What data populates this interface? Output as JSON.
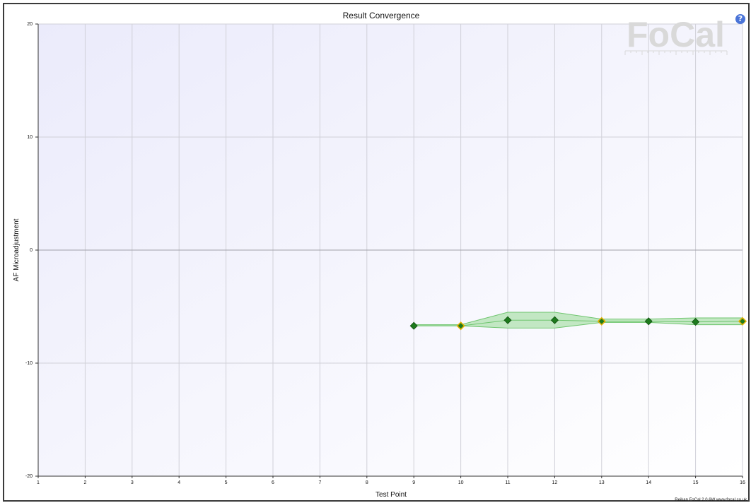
{
  "app": {
    "logo_text": "FoCal",
    "credit": "Reikan FoCal 2.0.6W  www.focal.co.uk",
    "help_label": "?"
  },
  "colors": {
    "band_fill": "#b8e4b8",
    "band_stroke": "#6fc56f",
    "marker_fill": "#1d7a1d",
    "marker_highlight": "#e0b000",
    "grid": "#d0d0d8",
    "zero_line": "#a0a0a8"
  },
  "chart_data": {
    "type": "line",
    "title": "Result Convergence",
    "xlabel": "Test Point",
    "ylabel": "AF Microadjustment",
    "xlim": [
      1,
      16
    ],
    "ylim": [
      -20,
      20
    ],
    "x_ticks": [
      1,
      2,
      3,
      4,
      5,
      6,
      7,
      8,
      9,
      10,
      11,
      12,
      13,
      14,
      15,
      16
    ],
    "y_ticks": [
      -20,
      -10,
      0,
      10,
      20
    ],
    "grid": true,
    "series": [
      {
        "x": [
          9,
          10,
          11,
          12,
          13,
          14,
          15,
          16
        ],
        "y": [
          -6.7,
          -6.7,
          -6.2,
          -6.2,
          -6.3,
          -6.3,
          -6.35,
          -6.3
        ],
        "highlighted": [
          false,
          true,
          false,
          false,
          true,
          false,
          false,
          true
        ],
        "band_upper": [
          -6.6,
          -6.6,
          -5.5,
          -5.5,
          -6.1,
          -6.1,
          -6.0,
          -6.0
        ],
        "band_lower": [
          -6.7,
          -6.7,
          -6.9,
          -6.9,
          -6.4,
          -6.4,
          -6.6,
          -6.6
        ]
      }
    ]
  }
}
